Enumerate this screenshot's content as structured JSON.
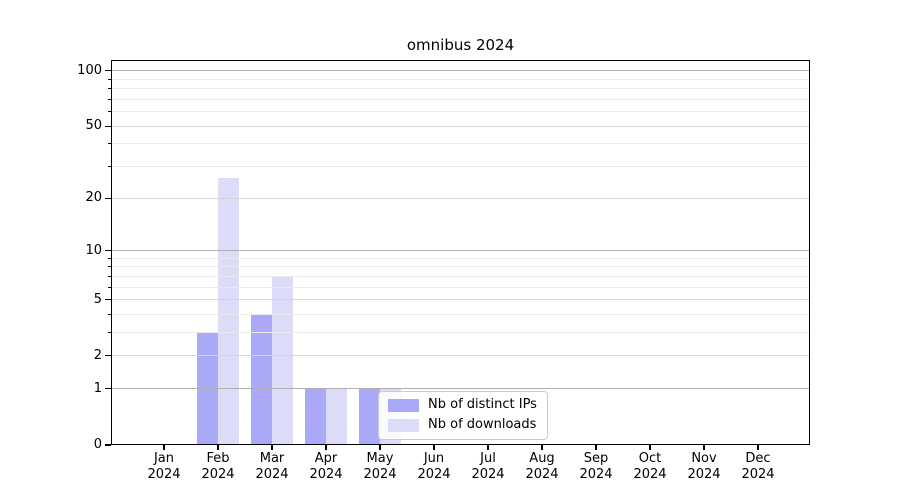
{
  "chart_data": {
    "type": "bar",
    "title": "omnibus 2024",
    "categories": [
      "Jan",
      "Feb",
      "Mar",
      "Apr",
      "May",
      "Jun",
      "Jul",
      "Aug",
      "Sep",
      "Oct",
      "Nov",
      "Dec"
    ],
    "category_year": "2024",
    "series": [
      {
        "name": "Nb of distinct IPs",
        "color": "#a9a9f7",
        "values": [
          0,
          3,
          4,
          1,
          1,
          0,
          0,
          0,
          0,
          0,
          0,
          0
        ]
      },
      {
        "name": "Nb of downloads",
        "color": "#dcdcf8",
        "values": [
          0,
          26,
          7,
          1,
          1,
          0,
          0,
          0,
          0,
          0,
          0,
          0
        ]
      }
    ],
    "yscale": "log1p",
    "ylim": [
      0,
      114.3
    ],
    "yticks_major": [
      0,
      1,
      2,
      5,
      10,
      20,
      50,
      100
    ],
    "yticks_minor": [
      3,
      4,
      6,
      7,
      8,
      9,
      30,
      40,
      60,
      70,
      80,
      90
    ],
    "grid": true,
    "legend_position": "lower-center-right",
    "colors": {
      "grid_power10": "#b0b0b0",
      "grid_labeled": "#d6d6d6",
      "grid_minor": "#ebebeb",
      "spine": "#000000",
      "text": "#000000",
      "legend_border": "#cccccc"
    }
  }
}
